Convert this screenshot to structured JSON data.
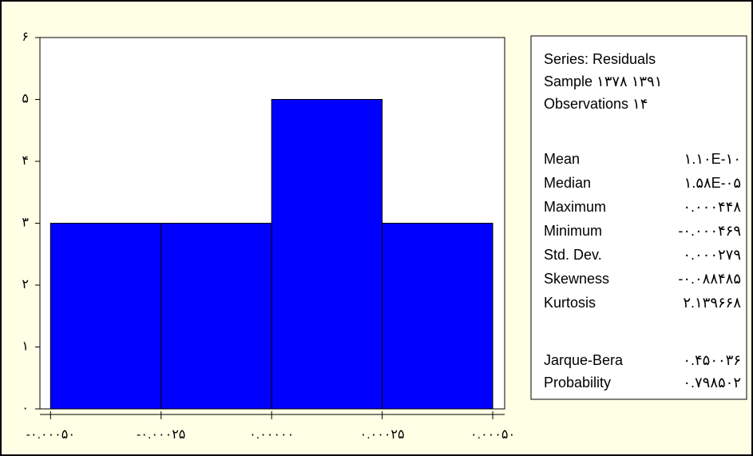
{
  "chart_data": {
    "type": "histogram",
    "bins": [
      -0.0005,
      -0.00025,
      0,
      0.00025,
      0.0005
    ],
    "values": [
      3,
      3,
      5,
      3
    ],
    "color": "#0000ff",
    "xlim": [
      -0.000524,
      0.000527
    ],
    "ylim": [
      0,
      6
    ],
    "xticks": [
      {
        "value": -0.0005,
        "label": "-۰.۰۰۰۵۰"
      },
      {
        "value": -0.00025,
        "label": "-۰.۰۰۰۲۵"
      },
      {
        "value": 0,
        "label": "۰.۰۰۰۰۰"
      },
      {
        "value": 0.00025,
        "label": "۰.۰۰۰۲۵"
      },
      {
        "value": 0.0005,
        "label": "۰.۰۰۰۵۰"
      }
    ],
    "yticks": [
      {
        "value": 0,
        "label": "۰"
      },
      {
        "value": 1,
        "label": "۱"
      },
      {
        "value": 2,
        "label": "۲"
      },
      {
        "value": 3,
        "label": "۳"
      },
      {
        "value": 4,
        "label": "۴"
      },
      {
        "value": 5,
        "label": "۵"
      },
      {
        "value": 6,
        "label": "۶"
      }
    ],
    "stats_box": {
      "header": [
        "Series: Residuals",
        "Sample ۱۳۷۸ ۱۳۹۱",
        "Observations ۱۴"
      ],
      "rows": [
        [
          "Mean",
          "۱.۱۰E-۱۰"
        ],
        [
          "Median",
          "۱.۵۸E-۰۵"
        ],
        [
          "Maximum",
          "۰.۰۰۰۴۴۸"
        ],
        [
          "Minimum",
          "-۰.۰۰۰۴۶۹"
        ],
        [
          "Std. Dev.",
          "۰.۰۰۰۲۷۹"
        ],
        [
          "Skewness",
          "-۰.۰۸۸۴۸۵"
        ],
        [
          "Kurtosis",
          "۲.۱۳۹۶۶۸"
        ]
      ],
      "tests": [
        [
          "Jarque-Bera",
          "۰.۴۵۰۰۳۶"
        ],
        [
          "Probability",
          "۰.۷۹۸۵۰۲"
        ]
      ]
    }
  }
}
